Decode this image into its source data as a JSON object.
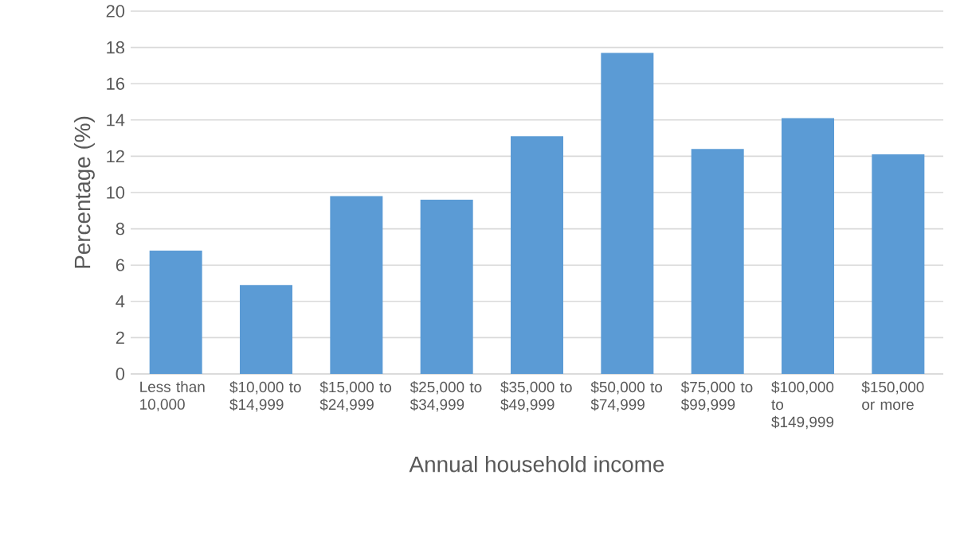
{
  "chart_data": {
    "type": "bar",
    "xlabel": "Annual household income",
    "ylabel": "Percentage (%)",
    "categories": [
      "Less than 10,000",
      "$10,000 to $14,999",
      "$15,000 to $24,999",
      "$25,000 to $34,999",
      "$35,000 to $49,999",
      "$50,000 to $74,999",
      "$75,000 to $99,999",
      "$100,000 to $149,999",
      "$150,000 or more"
    ],
    "values": [
      6.8,
      4.9,
      9.8,
      9.6,
      13.1,
      17.7,
      12.4,
      14.1,
      12.1
    ],
    "color": "#5b9bd5",
    "ylim": [
      0,
      20
    ],
    "yticks": [
      0,
      2,
      4,
      6,
      8,
      10,
      12,
      14,
      16,
      18,
      20
    ],
    "grid": "y"
  }
}
